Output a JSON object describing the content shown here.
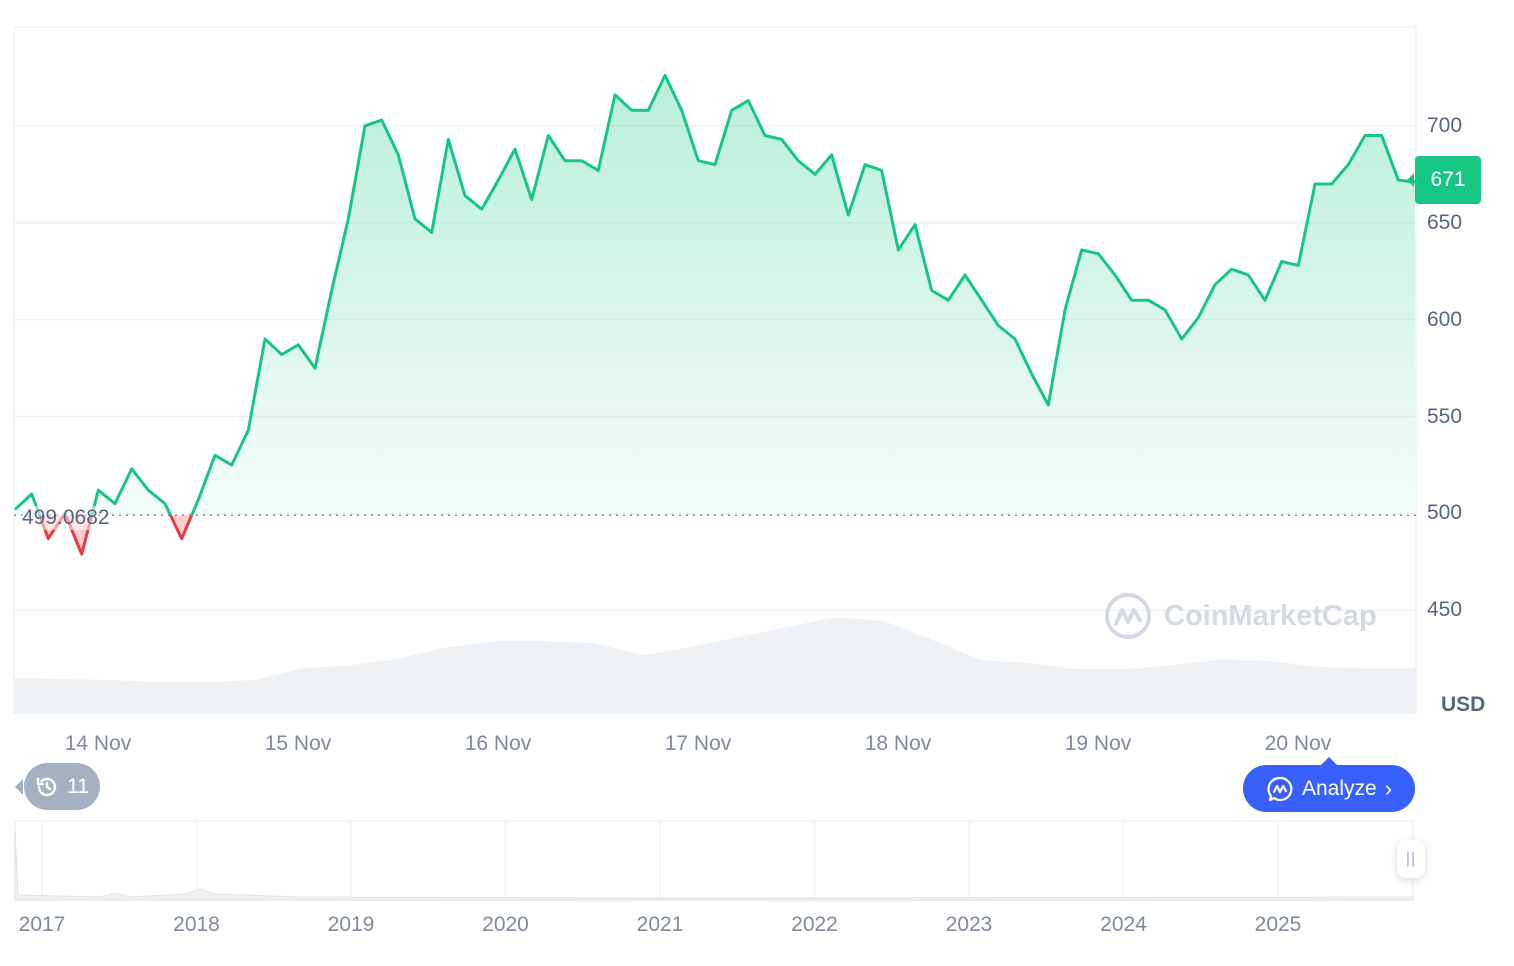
{
  "chart_data": {
    "type": "area",
    "currency": "USD",
    "baseline": {
      "label": "499.0682",
      "value": 499.0682
    },
    "current_price": {
      "label": "671",
      "value": 671
    },
    "ylim": [
      397,
      751
    ],
    "yticks": [
      "700",
      "650",
      "600",
      "550",
      "500",
      "450"
    ],
    "ytick_values": [
      700,
      650,
      600,
      550,
      500,
      450
    ],
    "xticks": [
      "14 Nov",
      "15 Nov",
      "16 Nov",
      "17 Nov",
      "18 Nov",
      "19 Nov",
      "20 Nov"
    ],
    "colors": {
      "up": "#16c784",
      "down": "#ea3943",
      "volume": "#eff2f5"
    },
    "grid": true,
    "x": [
      "13 Nov 14:00",
      "13 Nov 16:00",
      "13 Nov 18:00",
      "13 Nov 20:00",
      "13 Nov 22:00",
      "14 Nov 00:00",
      "14 Nov 02:00",
      "14 Nov 04:00",
      "14 Nov 06:00",
      "14 Nov 08:00",
      "14 Nov 10:00",
      "14 Nov 12:00",
      "14 Nov 14:00",
      "14 Nov 16:00",
      "14 Nov 18:00",
      "14 Nov 20:00",
      "14 Nov 22:00",
      "15 Nov 00:00",
      "15 Nov 02:00",
      "15 Nov 04:00",
      "15 Nov 06:00",
      "15 Nov 08:00",
      "15 Nov 10:00",
      "15 Nov 12:00",
      "15 Nov 14:00",
      "15 Nov 16:00",
      "15 Nov 18:00",
      "15 Nov 20:00",
      "15 Nov 22:00",
      "16 Nov 00:00",
      "16 Nov 02:00",
      "16 Nov 04:00",
      "16 Nov 06:00",
      "16 Nov 08:00",
      "16 Nov 10:00",
      "16 Nov 12:00",
      "16 Nov 14:00",
      "16 Nov 16:00",
      "16 Nov 18:00",
      "16 Nov 20:00",
      "16 Nov 22:00",
      "17 Nov 00:00",
      "17 Nov 02:00",
      "17 Nov 04:00",
      "17 Nov 06:00",
      "17 Nov 08:00",
      "17 Nov 10:00",
      "17 Nov 12:00",
      "17 Nov 14:00",
      "17 Nov 16:00",
      "17 Nov 18:00",
      "17 Nov 20:00",
      "17 Nov 22:00",
      "18 Nov 00:00",
      "18 Nov 02:00",
      "18 Nov 04:00",
      "18 Nov 06:00",
      "18 Nov 08:00",
      "18 Nov 10:00",
      "18 Nov 12:00",
      "18 Nov 14:00",
      "18 Nov 16:00",
      "18 Nov 18:00",
      "18 Nov 20:00",
      "18 Nov 22:00",
      "19 Nov 00:00",
      "19 Nov 02:00",
      "19 Nov 04:00",
      "19 Nov 06:00",
      "19 Nov 08:00",
      "19 Nov 10:00",
      "19 Nov 12:00",
      "19 Nov 14:00",
      "19 Nov 16:00",
      "19 Nov 18:00",
      "19 Nov 20:00",
      "19 Nov 22:00",
      "20 Nov 00:00",
      "20 Nov 02:00",
      "20 Nov 04:00",
      "20 Nov 06:00",
      "20 Nov 08:00",
      "20 Nov 10:00",
      "20 Nov 12:00",
      "20 Nov 14:00"
    ],
    "values": [
      502,
      510,
      487,
      500,
      479,
      512,
      505,
      523,
      512,
      505,
      487,
      507,
      530,
      525,
      543,
      590,
      582,
      587,
      575,
      615,
      652,
      700,
      703,
      685,
      652,
      645,
      693,
      664,
      657,
      672,
      688,
      662,
      695,
      682,
      682,
      677,
      716,
      708,
      708,
      726,
      708,
      682,
      680,
      708,
      713,
      695,
      693,
      682,
      675,
      685,
      654,
      680,
      677,
      636,
      649,
      615,
      610,
      623,
      610,
      597,
      590,
      572,
      556,
      605,
      636,
      634,
      623,
      610,
      610,
      605,
      590,
      601,
      618,
      626,
      623,
      610,
      630,
      628,
      670,
      670,
      680,
      695,
      695,
      672,
      671
    ],
    "volume_relative": [
      0.35,
      0.34,
      0.33,
      0.31,
      0.31,
      0.33,
      0.45,
      0.48,
      0.55,
      0.66,
      0.72,
      0.72,
      0.7,
      0.58,
      0.66,
      0.76,
      0.86,
      0.96,
      0.92,
      0.73,
      0.53,
      0.5,
      0.44,
      0.44,
      0.48,
      0.54,
      0.52,
      0.46,
      0.45,
      0.45
    ]
  },
  "navigator": {
    "years": [
      "2017",
      "2018",
      "2019",
      "2020",
      "2021",
      "2022",
      "2023",
      "2024",
      "2025"
    ]
  },
  "watermark": "CoinMarketCap",
  "history_button": {
    "count": "11",
    "icon": "history-icon"
  },
  "analyze_button": {
    "label": "Analyze",
    "icon": "cmc-ai-icon",
    "color": "#3861fb"
  }
}
